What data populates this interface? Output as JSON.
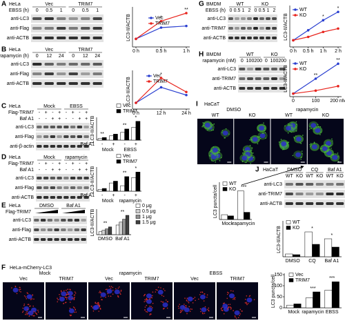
{
  "blots": {
    "A": {
      "label": "A",
      "cell": "HeLa",
      "groups": [
        "Vec",
        "TRIM7"
      ],
      "rows": [
        {
          "name": "EBSS (h)",
          "cells": [
            "0",
            "0.5",
            "1",
            "0",
            "0.5",
            "1"
          ]
        }
      ],
      "blots": [
        "anti-LC3",
        "anti-Flag",
        "anti-ACTB"
      ]
    },
    "B": {
      "label": "B",
      "cell": "HeLa",
      "groups": [
        "Vec",
        "TRIM7"
      ],
      "rows": [
        {
          "name": "rapamycin (h)",
          "cells": [
            "0",
            "12",
            "24",
            "0",
            "12",
            "24"
          ]
        }
      ],
      "blots": [
        "anti-LC3",
        "anti-Flag",
        "anti-ACTB"
      ]
    },
    "C": {
      "label": "C",
      "cell": "HeLa",
      "groups": [
        "Mock",
        "EBSS"
      ],
      "rows": [
        {
          "name": "Flag-TRIM7",
          "cells": [
            "-",
            "+",
            "-",
            "+",
            "-",
            "+",
            "-",
            "+"
          ]
        },
        {
          "name": "Baf A1",
          "cells": [
            "-",
            "-",
            "+",
            "+",
            "-",
            "-",
            "+",
            "+"
          ]
        }
      ],
      "blots": [
        "anti-LC3",
        "anti-Flag",
        "anti-β-actin"
      ]
    },
    "D": {
      "label": "D",
      "cell": "HeLa",
      "groups": [
        "Mock",
        "rapamycin"
      ],
      "rows": [
        {
          "name": "Flag-TRIM7",
          "cells": [
            "-",
            "+",
            "-",
            "+",
            "-",
            "+",
            "-",
            "+"
          ]
        },
        {
          "name": "Baf A1",
          "cells": [
            "-",
            "-",
            "+",
            "+",
            "-",
            "-",
            "+",
            "+"
          ]
        }
      ],
      "blots": [
        "anti-LC3",
        "anti-Flag",
        "anti-ACTB"
      ]
    },
    "E": {
      "label": "E",
      "cell": "HeLa",
      "groups": [
        "DMSO",
        "Baf A1"
      ],
      "rows": [
        {
          "name": "Flag-TRIM7"
        }
      ],
      "blots": [
        "anti-LC3",
        "anti-Flag",
        "anti-ACTB"
      ]
    },
    "G": {
      "label": "G",
      "cell": "BMDM",
      "groups": [
        "WT",
        "KO"
      ],
      "rows": [
        {
          "name": "EBSS (h)",
          "cells": [
            "0",
            "0.5",
            "1",
            "2",
            "0",
            "0.5",
            "1",
            "2"
          ]
        }
      ],
      "blots": [
        "anti-LC3",
        "anti-TRIM7",
        "anti-ACTB"
      ]
    },
    "H": {
      "label": "H",
      "cell": "BMDM",
      "groups": [
        "WT",
        "KO"
      ],
      "rows": [
        {
          "name": "rapamycin (nM)",
          "cells": [
            "0",
            "100",
            "200",
            "0",
            "100",
            "200"
          ]
        }
      ],
      "blots": [
        "anti-LC3",
        "anti-TRIM7",
        "anti-ACTB"
      ]
    },
    "J": {
      "label": "J",
      "cell": "HaCaT",
      "groups": [
        "DMSO",
        "CQ",
        "Baf A1"
      ],
      "rows": [
        {
          "cells": [
            "WT",
            "KO",
            "WT",
            "KO",
            "WT",
            "KO"
          ]
        }
      ],
      "blots": [
        "anti-LC3",
        "anti-TRIM7",
        "anti-ACTB"
      ]
    }
  },
  "images": {
    "F": {
      "label": "F",
      "cell": "HeLa-mCherry-LC3",
      "treatments": [
        "Mock",
        "rapamycin",
        "EBSS"
      ],
      "groups": [
        "Vec",
        "TRIM7",
        "Vec",
        "TRIM7",
        "Vec",
        "TRIM7"
      ]
    },
    "I": {
      "label": "I",
      "cell": "HaCaT",
      "treatments": [
        "DMSO",
        "rapamycin"
      ],
      "groups": [
        "WT",
        "KO",
        "WT",
        "KO"
      ]
    }
  },
  "chart_data": [
    {
      "type": "line",
      "ylabel": "LC3-II/ACTB",
      "categories": [
        "0 h",
        "0.5 h",
        "1 h"
      ],
      "series": [
        {
          "name": "Vec",
          "color": "#2a3fd0",
          "values": [
            0.25,
            0.6,
            0.65
          ]
        },
        {
          "name": "TRIM7",
          "color": "#e8231c",
          "values": [
            0.25,
            0.8,
            1.05
          ]
        }
      ],
      "ylim": [
        0,
        1.2
      ],
      "annotations": [
        null,
        "*",
        "**"
      ]
    },
    {
      "type": "line",
      "ylabel": "LC3-II/ACTB",
      "categories": [
        "0 h",
        "12 h",
        "24 h"
      ],
      "series": [
        {
          "name": "Vec",
          "color": "#2a3fd0",
          "values": [
            0.2,
            0.7,
            0.45
          ]
        },
        {
          "name": "TRIM7",
          "color": "#e8231c",
          "values": [
            0.2,
            1.0,
            0.55
          ]
        }
      ],
      "ylim": [
        0,
        1.2
      ],
      "annotations": [
        null,
        "*",
        null
      ]
    },
    {
      "type": "bar",
      "ylabel": "LC3-II/ACTB",
      "xlabel": "Baf A1",
      "categories": [
        "-",
        "+",
        "-",
        "+"
      ],
      "groups": [
        "Mock",
        "EBSS"
      ],
      "series": [
        {
          "name": "Vec",
          "color": "#ffffff",
          "values": [
            0.2,
            0.5,
            0.9,
            1.5
          ]
        },
        {
          "name": "TRIM7",
          "color": "#000000",
          "values": [
            0.3,
            0.7,
            1.3,
            2.2
          ]
        }
      ],
      "ylim": [
        0,
        2.5
      ],
      "annotations": [
        "**",
        null,
        "**",
        "*"
      ]
    },
    {
      "type": "bar",
      "ylabel": "LC3-II/ACTB",
      "xlabel": "Baf A1",
      "categories": [
        "-",
        "+",
        "-",
        "+"
      ],
      "groups": [
        "Mock",
        "rapamycin"
      ],
      "series": [
        {
          "name": "Vec",
          "color": "#ffffff",
          "values": [
            0.2,
            0.9,
            0.6,
            1.5
          ]
        },
        {
          "name": "TRIM7",
          "color": "#000000",
          "values": [
            0.3,
            1.1,
            1.6,
            2.1
          ]
        }
      ],
      "ylim": [
        0,
        2.5
      ],
      "annotations": [
        null,
        null,
        "**",
        "*"
      ]
    },
    {
      "type": "bar",
      "ylabel": "LC3-II/ACTB",
      "categories": [
        "DMSO",
        "Baf A1"
      ],
      "series": [
        {
          "name": "0 μg",
          "color": "#ffffff",
          "values": [
            0.3,
            1.0
          ]
        },
        {
          "name": "0.5 μg",
          "color": "#d0d0d0",
          "values": [
            0.45,
            1.3
          ]
        },
        {
          "name": "1 μg",
          "color": "#909090",
          "values": [
            0.6,
            1.6
          ]
        },
        {
          "name": "1.5 μg",
          "color": "#404040",
          "values": [
            0.8,
            2.0
          ]
        }
      ],
      "ylim": [
        0,
        2.5
      ],
      "annotations": [
        "**",
        "**"
      ]
    },
    {
      "type": "bar",
      "ylabel": "LC3 puncta/cell",
      "categories": [
        "Mock",
        "rapamycin",
        "EBSS"
      ],
      "series": [
        {
          "name": "Vec",
          "color": "#ffffff",
          "values": [
            12,
            45,
            80
          ]
        },
        {
          "name": "TRIM7",
          "color": "#000000",
          "values": [
            18,
            72,
            118
          ]
        }
      ],
      "ylim": [
        0,
        150
      ],
      "yticks": [
        0,
        50,
        100,
        150
      ],
      "annotations": [
        null,
        "***",
        "***"
      ]
    },
    {
      "type": "line",
      "ylabel": "LC3-II/ACTB",
      "categories": [
        "0 h",
        "0.5 h",
        "1 h",
        "2 h"
      ],
      "series": [
        {
          "name": "WT",
          "color": "#2a3fd0",
          "values": [
            0.2,
            0.5,
            0.8,
            1.05
          ]
        },
        {
          "name": "KO",
          "color": "#e8231c",
          "values": [
            0.2,
            0.3,
            0.45,
            0.55
          ]
        }
      ],
      "ylim": [
        0,
        1.2
      ],
      "annotations": [
        null,
        null,
        "*",
        "*"
      ]
    },
    {
      "type": "line",
      "ylabel": "LC3-II/ACTB",
      "categories": [
        "0",
        "100",
        "200 nM"
      ],
      "series": [
        {
          "name": "WT",
          "color": "#2a3fd0",
          "values": [
            0.1,
            0.6,
            1.1
          ]
        },
        {
          "name": "KO",
          "color": "#e8231c",
          "values": [
            0.1,
            0.2,
            0.35
          ]
        }
      ],
      "ylim": [
        0,
        1.2
      ],
      "annotations": [
        null,
        "**",
        "**"
      ]
    },
    {
      "type": "bar",
      "ylabel": "LC3 puncta/cell",
      "categories": [
        "Mock",
        "rapamycin"
      ],
      "series": [
        {
          "name": "WT",
          "color": "#ffffff",
          "values": [
            2,
            12
          ]
        },
        {
          "name": "KO",
          "color": "#000000",
          "values": [
            1.5,
            3
          ]
        }
      ],
      "ylim": [
        0,
        15
      ],
      "annotations": [
        null,
        "***"
      ]
    },
    {
      "type": "bar",
      "ylabel": "LC3-II/ACTB",
      "categories": [
        "DMSO",
        "CQ",
        "Baf A1"
      ],
      "series": [
        {
          "name": "WT",
          "color": "#ffffff",
          "values": [
            0.2,
            1.8,
            1.3
          ]
        },
        {
          "name": "KO",
          "color": "#000000",
          "values": [
            0.15,
            0.9,
            0.7
          ]
        }
      ],
      "ylim": [
        0,
        2.5
      ],
      "annotations": [
        null,
        "*",
        "*"
      ]
    }
  ]
}
